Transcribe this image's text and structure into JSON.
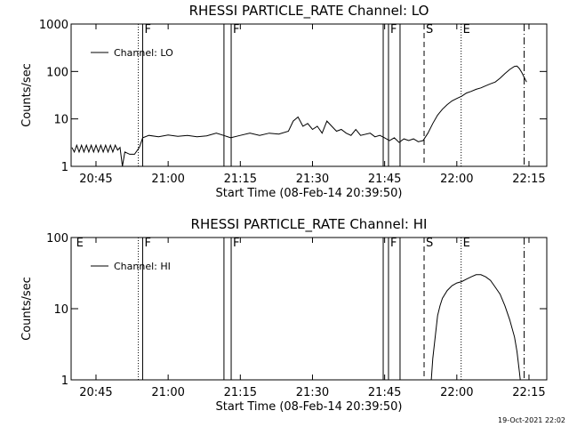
{
  "chart_data": [
    {
      "type": "line",
      "title": "RHESSI PARTICLE_RATE Channel: LO",
      "x_label": "Start Time (08-Feb-14 20:39:50)",
      "y_label": "Counts/sec",
      "log_y": true,
      "legend": "upper left",
      "xlim": [
        39.83,
        138.7
      ],
      "ylim": [
        1,
        1000
      ],
      "xticks": [
        {
          "value": 45,
          "label": "20:45"
        },
        {
          "value": 60,
          "label": "21:00"
        },
        {
          "value": 75,
          "label": "21:15"
        },
        {
          "value": 90,
          "label": "21:30"
        },
        {
          "value": 105,
          "label": "21:45"
        },
        {
          "value": 120,
          "label": "22:00"
        },
        {
          "value": 135,
          "label": "22:15"
        }
      ],
      "yticks": [
        1,
        10,
        100,
        1000
      ],
      "events": [
        {
          "x": 53.8,
          "style": "dotted"
        },
        {
          "x": 54.7,
          "style": "solid",
          "label": "F"
        },
        {
          "x": 71.6,
          "style": "solid"
        },
        {
          "x": 73.1,
          "style": "solid",
          "label": "F"
        },
        {
          "x": 104.7,
          "style": "solid"
        },
        {
          "x": 105.8,
          "style": "solid",
          "label": "F"
        },
        {
          "x": 108.2,
          "style": "solid"
        },
        {
          "x": 113.2,
          "style": "dashed",
          "label": "S"
        },
        {
          "x": 120.9,
          "style": "dotted",
          "label": "E"
        },
        {
          "x": 134,
          "style": "dashdot"
        }
      ],
      "series": [
        {
          "name": "Channel: LO",
          "color": "#000000",
          "x": [
            40,
            40.5,
            41,
            41.5,
            42,
            42.5,
            43,
            43.5,
            44,
            44.5,
            45,
            45.5,
            46,
            46.5,
            47,
            47.5,
            48,
            48.5,
            49,
            49.5,
            50,
            50.5,
            51,
            52,
            53,
            54,
            54.7,
            56,
            58,
            60,
            62,
            64,
            66,
            68,
            70,
            71.5,
            73,
            75,
            77,
            79,
            81,
            83,
            85,
            86,
            87,
            88,
            89,
            90,
            91,
            92,
            93,
            94,
            95,
            96,
            97,
            98,
            99,
            100,
            102,
            103,
            104,
            105,
            106,
            107,
            108,
            109,
            110,
            111,
            112,
            113,
            114,
            115,
            116,
            117,
            118,
            119,
            120,
            121,
            122,
            123,
            124,
            125,
            126,
            127,
            128,
            129,
            130,
            131,
            132,
            132.5,
            133,
            133.5,
            134,
            134.5
          ],
          "values": [
            2.5,
            2,
            2.8,
            2,
            2.8,
            2,
            2.8,
            2,
            2.8,
            2,
            2.8,
            2,
            2.8,
            2,
            2.8,
            2,
            2.8,
            2,
            2.8,
            2.2,
            2.5,
            1,
            2,
            1.8,
            1.8,
            2.5,
            4,
            4.5,
            4.2,
            4.6,
            4.3,
            4.5,
            4.2,
            4.4,
            5,
            4.5,
            4,
            4.5,
            5,
            4.5,
            5,
            4.8,
            5.5,
            9,
            11,
            7,
            8,
            6,
            7,
            5,
            9,
            7,
            5.5,
            6,
            5,
            4.5,
            6,
            4.5,
            5,
            4.2,
            4.5,
            4,
            3.5,
            4,
            3.2,
            3.8,
            3.5,
            3.8,
            3.3,
            3.5,
            5,
            8,
            12,
            16,
            20,
            24,
            27,
            30,
            35,
            38,
            42,
            45,
            50,
            55,
            60,
            72,
            90,
            110,
            128,
            130,
            115,
            95,
            75,
            60
          ]
        }
      ]
    },
    {
      "type": "line",
      "title": "RHESSI PARTICLE_RATE Channel: HI",
      "x_label": "Start Time (08-Feb-14 20:39:50)",
      "y_label": "Counts/sec",
      "log_y": true,
      "legend": "upper left",
      "xlim": [
        39.83,
        138.7
      ],
      "ylim": [
        1,
        100
      ],
      "xticks": [
        {
          "value": 45,
          "label": "20:45"
        },
        {
          "value": 60,
          "label": "21:00"
        },
        {
          "value": 75,
          "label": "21:15"
        },
        {
          "value": 90,
          "label": "21:30"
        },
        {
          "value": 105,
          "label": "21:45"
        },
        {
          "value": 120,
          "label": "22:00"
        },
        {
          "value": 135,
          "label": "22:15"
        }
      ],
      "yticks": [
        1,
        10,
        100
      ],
      "events": [
        {
          "x": 40.5,
          "style": "none",
          "label": "E"
        },
        {
          "x": 53.8,
          "style": "dotted"
        },
        {
          "x": 54.7,
          "style": "solid",
          "label": "F"
        },
        {
          "x": 71.6,
          "style": "solid"
        },
        {
          "x": 73.1,
          "style": "solid",
          "label": "F"
        },
        {
          "x": 104.7,
          "style": "solid"
        },
        {
          "x": 105.8,
          "style": "solid",
          "label": "F"
        },
        {
          "x": 108.2,
          "style": "solid"
        },
        {
          "x": 113.2,
          "style": "dashed",
          "label": "S"
        },
        {
          "x": 120.9,
          "style": "dotted",
          "label": "E"
        },
        {
          "x": 134,
          "style": "dashdot"
        }
      ],
      "series": [
        {
          "name": "Channel: HI",
          "color": "#000000",
          "x": [
            114.7,
            115,
            115.5,
            116,
            116.5,
            117,
            118,
            119,
            120,
            121,
            122,
            123,
            124,
            125,
            126,
            127,
            128,
            129,
            130,
            131,
            132,
            132.5,
            133,
            133.2
          ],
          "values": [
            1,
            2,
            4,
            8,
            11,
            14,
            18,
            21,
            23,
            24,
            26,
            28,
            30,
            30,
            28,
            25,
            20,
            16,
            11,
            7,
            4,
            2.5,
            1.3,
            1
          ]
        }
      ]
    }
  ],
  "footer": "19-Oct-2021 22:02"
}
